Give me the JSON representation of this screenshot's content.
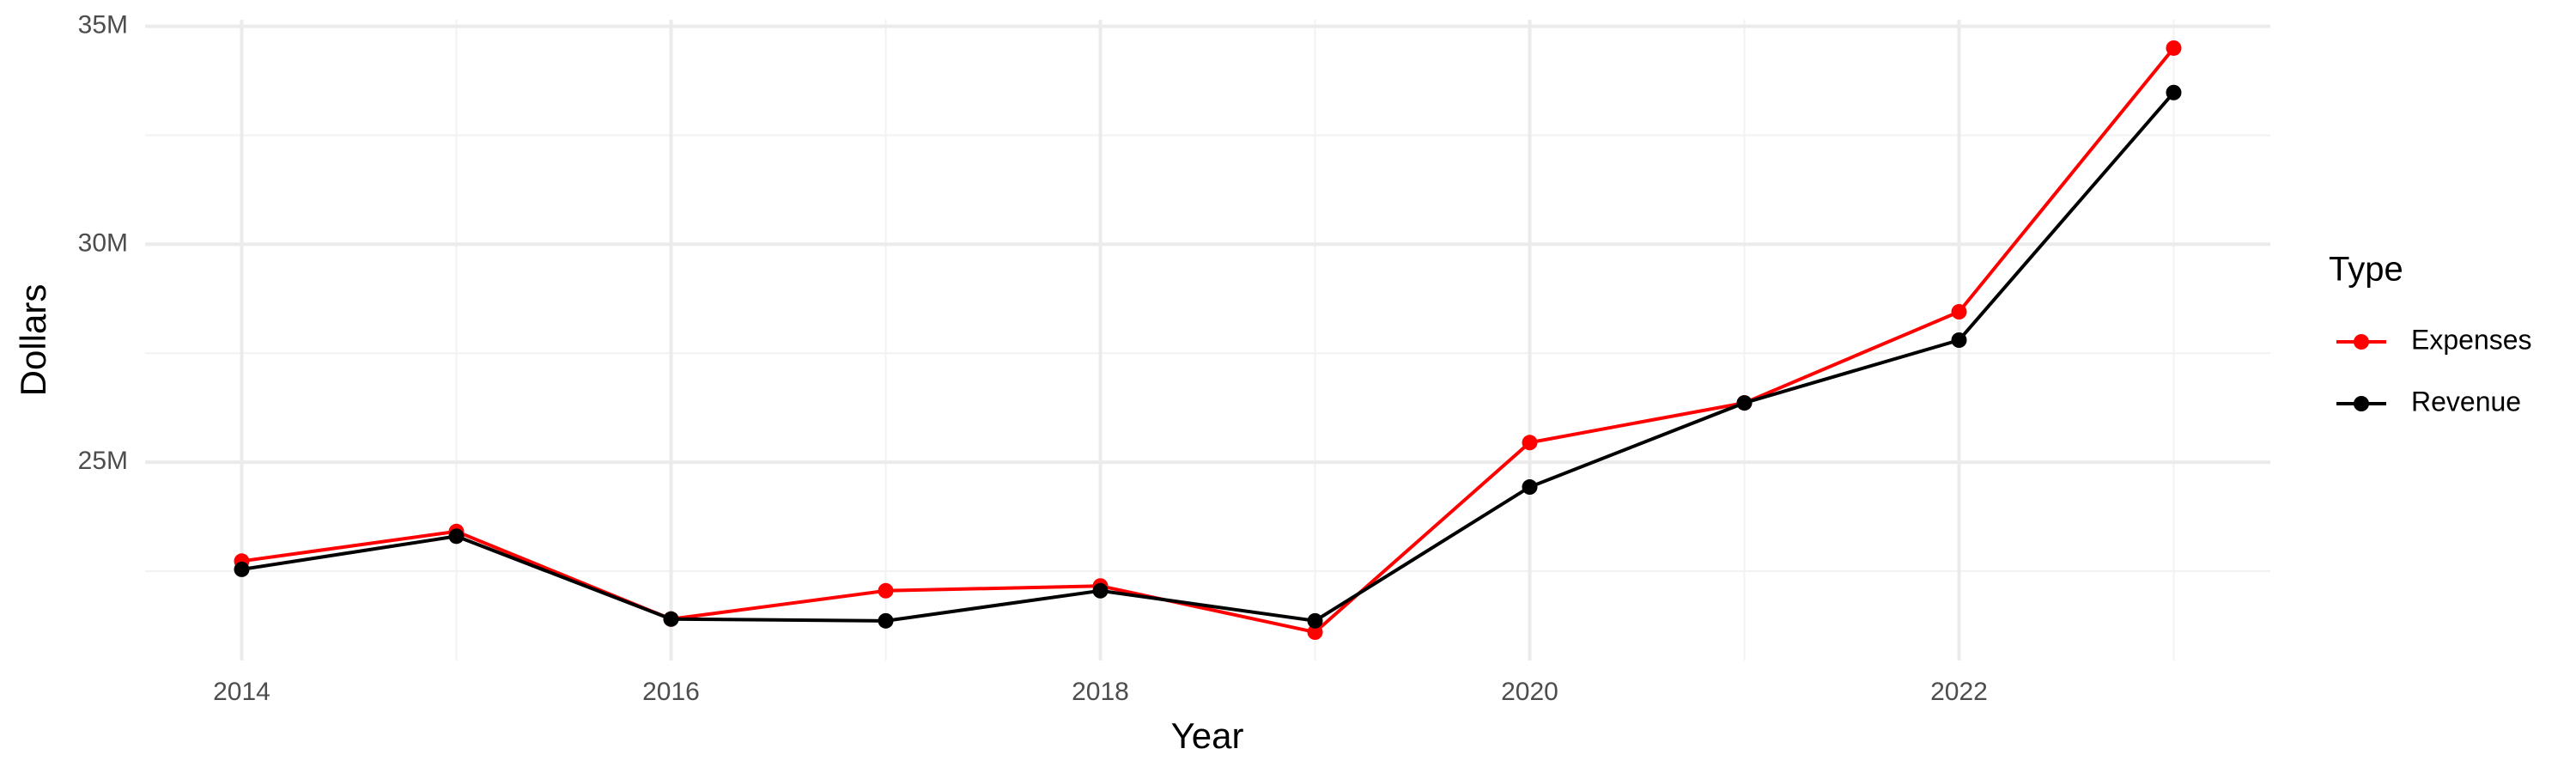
{
  "chart_data": {
    "type": "line",
    "x_label": "Year",
    "y_label": "Dollars",
    "x": [
      2014,
      2015,
      2016,
      2017,
      2018,
      2019,
      2020,
      2021,
      2022,
      2023
    ],
    "series": [
      {
        "name": "Expenses",
        "color": "#ff0000",
        "values": [
          22730000,
          23410000,
          21400000,
          22050000,
          22160000,
          21100000,
          25450000,
          26360000,
          28450000,
          34500000
        ]
      },
      {
        "name": "Revenue",
        "color": "#000000",
        "values": [
          22540000,
          23300000,
          21400000,
          21360000,
          22050000,
          21360000,
          24430000,
          26360000,
          27800000,
          33480000
        ]
      }
    ],
    "xlim": [
      2013.55,
      2023.45
    ],
    "xticks": [
      2014,
      2016,
      2018,
      2020,
      2022
    ],
    "ylim": [
      20450000,
      35150000
    ],
    "yticks": [
      {
        "value": 25000000,
        "label": "25M"
      },
      {
        "value": 30000000,
        "label": "30M"
      },
      {
        "value": 35000000,
        "label": "35M"
      }
    ],
    "grid": true,
    "minor_grid": true,
    "legend_title": "Type",
    "legend_position": "right"
  }
}
